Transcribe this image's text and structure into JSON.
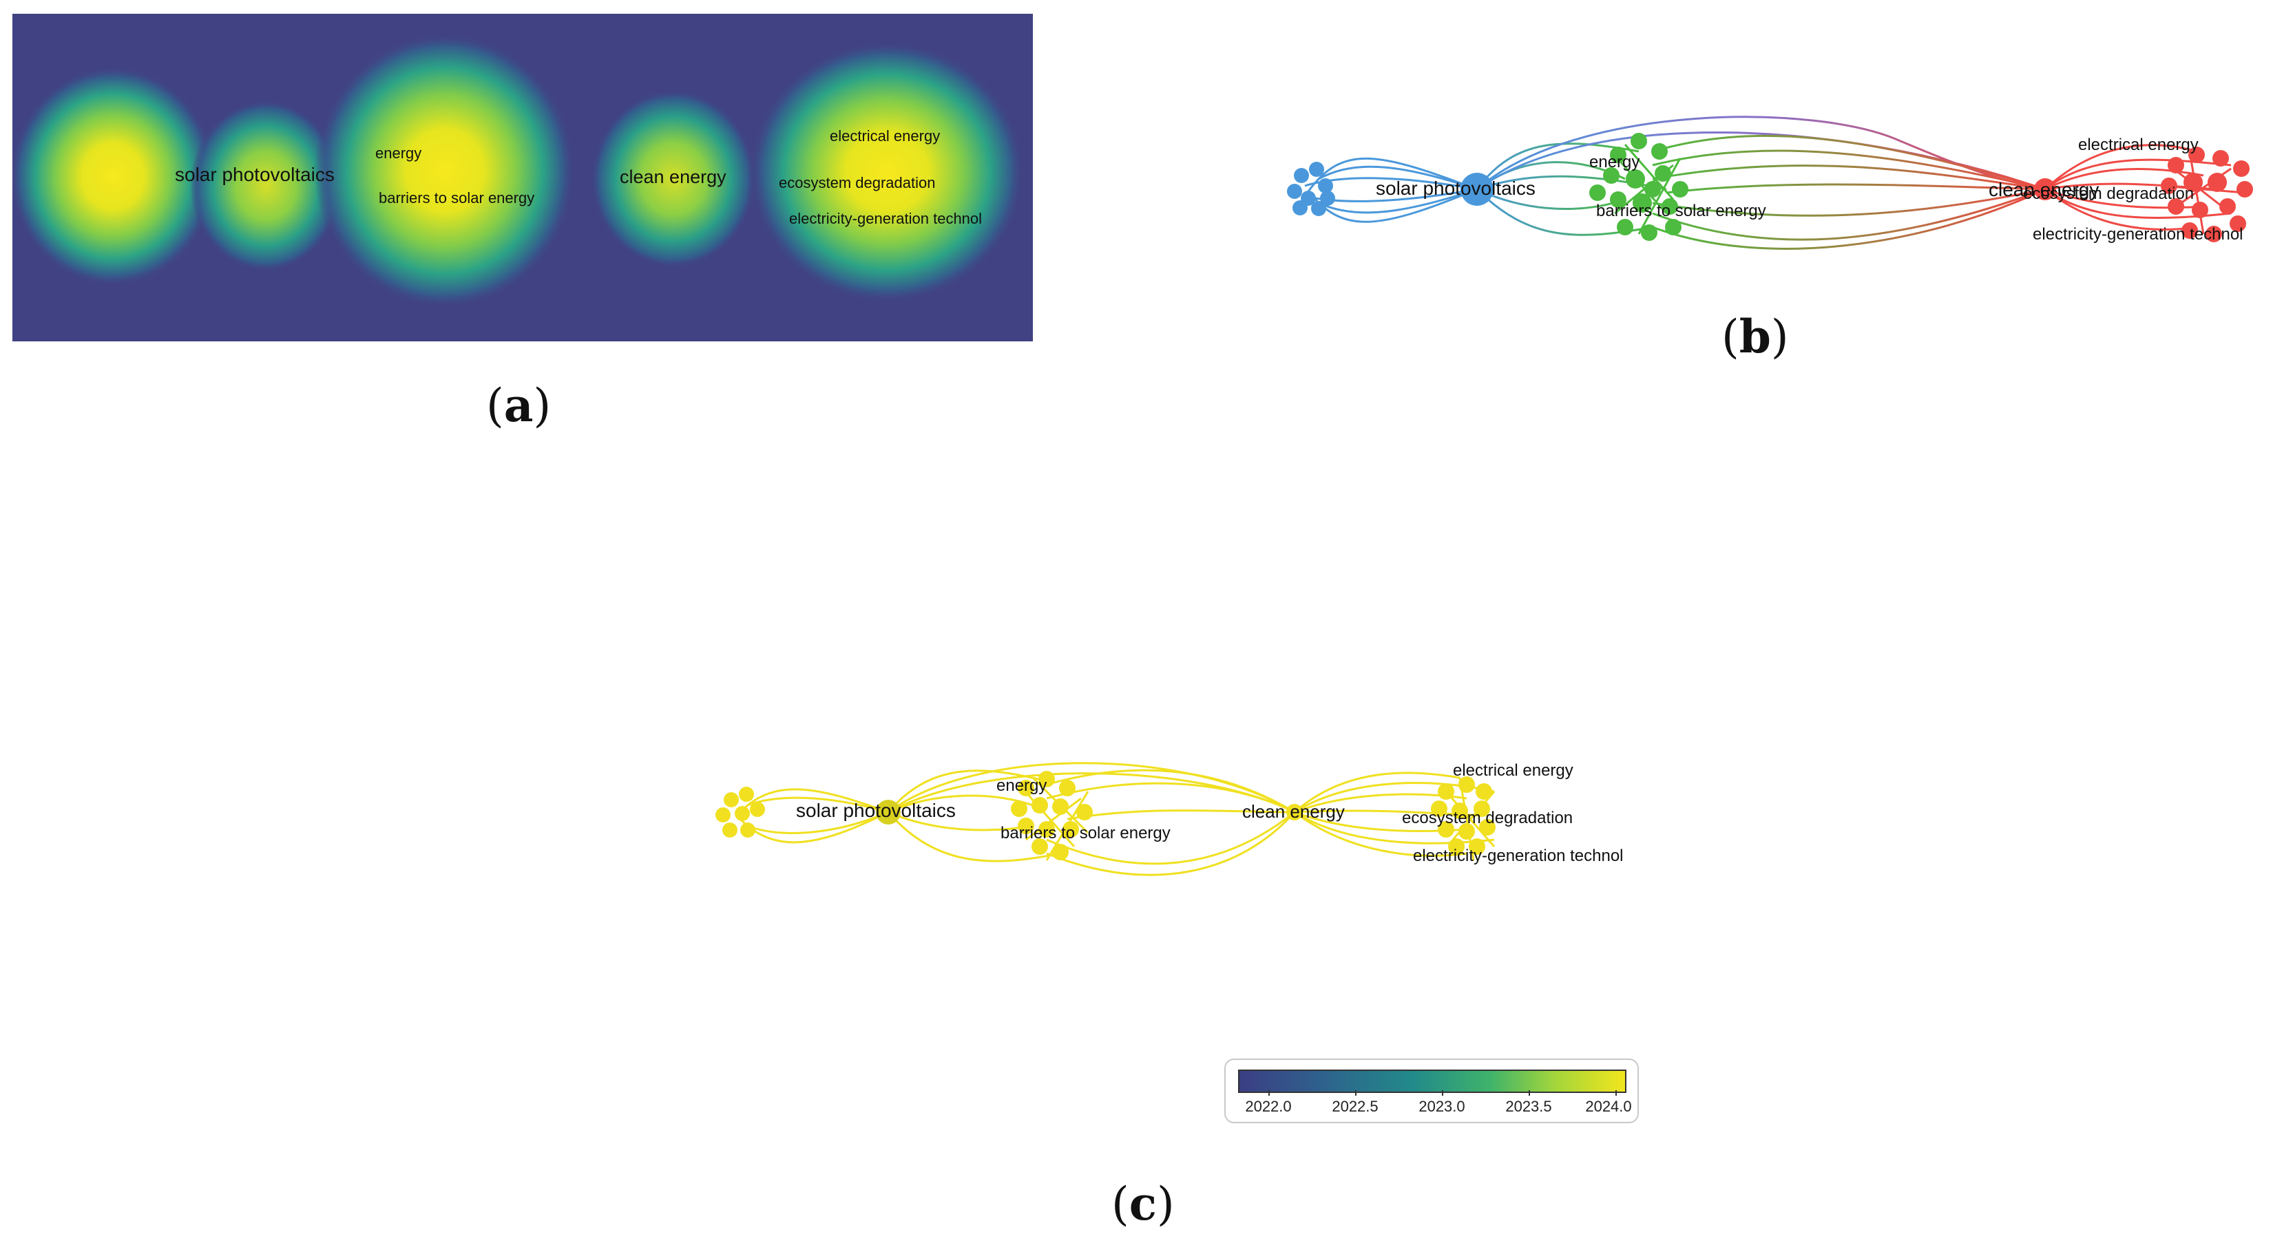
{
  "panels": {
    "a": {
      "caption_letter": "a",
      "labels": {
        "solar": "solar photovoltaics",
        "energy": "energy",
        "barriers": "barriers to solar energy",
        "clean": "clean energy",
        "electrical": "electrical energy",
        "ecosystem": "ecosystem degradation",
        "electricity": "electricity-generation technol"
      }
    },
    "b": {
      "caption_letter": "b",
      "labels": {
        "solar": "solar photovoltaics",
        "energy": "energy",
        "barriers": "barriers to solar energy",
        "clean": "clean energy",
        "electrical": "electrical energy",
        "ecosystem": "ecosystem degradation",
        "electricity": "electricity-generation technol"
      },
      "cluster_colors": {
        "blue": "#4a98db",
        "green": "#4cbb3f",
        "red": "#ef4a45"
      }
    },
    "c": {
      "caption_letter": "c",
      "labels": {
        "solar": "solar photovoltaics",
        "energy": "energy",
        "barriers": "barriers to solar energy",
        "clean": "clean energy",
        "electrical": "electrical energy",
        "ecosystem": "ecosystem degradation",
        "electricity": "electricity-generation technol"
      },
      "node_color": "#f0e020",
      "legend": {
        "ticks": [
          "2022.0",
          "2022.5",
          "2023.0",
          "2023.5",
          "2024.0"
        ]
      }
    }
  }
}
